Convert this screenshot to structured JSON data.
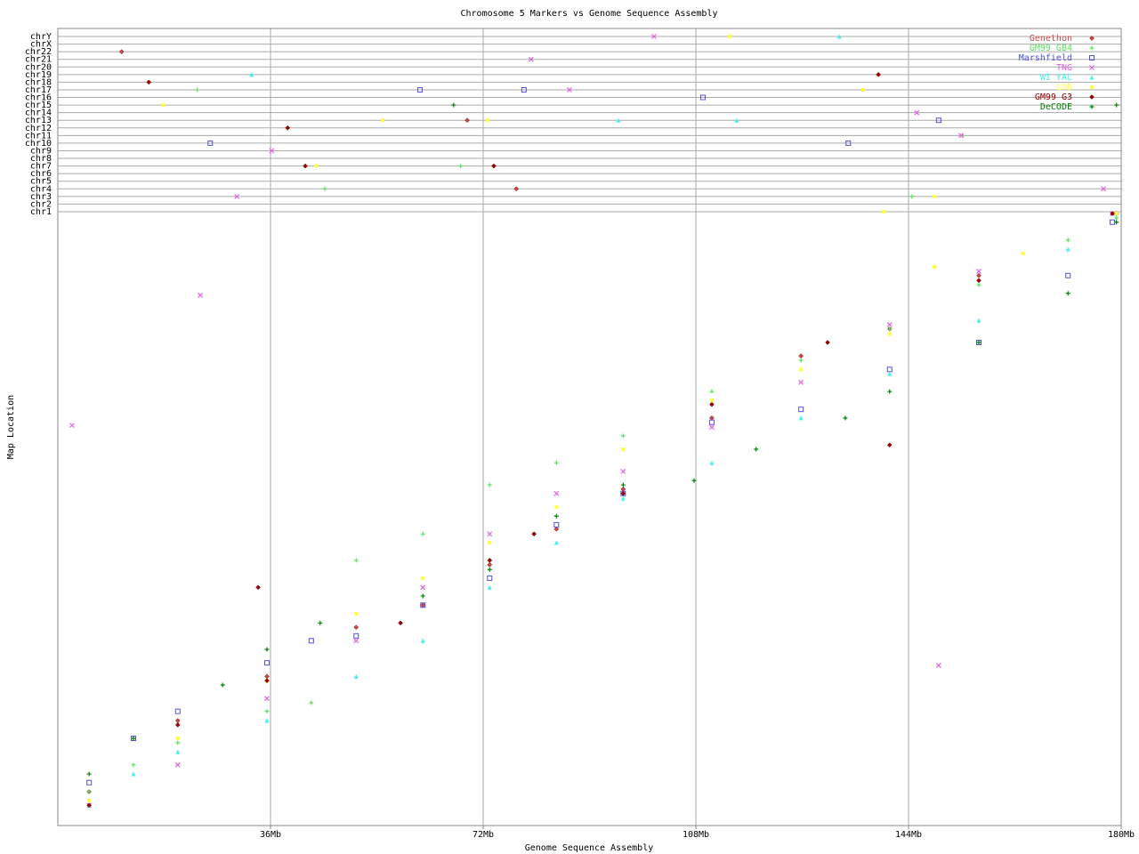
{
  "chart_data": {
    "type": "scatter",
    "title": "Chromosome 5 Markers vs Genome Sequence Assembly",
    "x_label": "Genome Sequence Assembly",
    "y_label": "Map Location",
    "xlim": [
      0,
      180
    ],
    "xticks": [
      {
        "value": 36,
        "label": "36Mb"
      },
      {
        "value": 72,
        "label": "72Mb"
      },
      {
        "value": 108,
        "label": "108Mb"
      },
      {
        "value": 144,
        "label": "144Mb"
      },
      {
        "value": 180,
        "label": "180Mb"
      }
    ],
    "ylim": [
      0,
      100
    ],
    "grid": true,
    "legend": "top-right",
    "chromosomes": [
      "chrY",
      "chrX",
      "chr22",
      "chr21",
      "chr20",
      "chr19",
      "chr18",
      "chr17",
      "chr16",
      "chr15",
      "chr14",
      "chr13",
      "chr12",
      "chr11",
      "chr10",
      "chr9",
      "chr8",
      "chr7",
      "chr6",
      "chr5",
      "chr4",
      "chr3",
      "chr2",
      "chr1"
    ],
    "series": [
      {
        "name": "Genethon",
        "color": "#d04848",
        "marker": "diamond",
        "x": [
          5.3,
          20.3,
          35.4,
          50.5,
          61.8,
          73.1,
          84.4,
          95.7,
          110.7,
          125.8,
          140.8,
          155.9,
          179.2
        ],
        "values": [
          5.5,
          17.1,
          24.3,
          32.3,
          35.9,
          42.5,
          48.3,
          54.8,
          66.4,
          76.5,
          80.9,
          89.6,
          99.7
        ],
        "off_x": [
          10.8,
          69.3,
          77.6
        ],
        "off_chr": [
          "chr22",
          "chr13",
          "chr4"
        ]
      },
      {
        "name": "GM99 GB4",
        "color": "#60e060",
        "marker": "plus",
        "x": [
          5.3,
          12.8,
          20.3,
          35.4,
          42.9,
          50.5,
          61.8,
          73.1,
          84.4,
          95.7,
          110.7,
          125.8,
          140.8,
          155.9,
          171,
          179.2
        ],
        "values": [
          5.5,
          9.9,
          13.5,
          18.6,
          20,
          43.2,
          47.5,
          55.5,
          59.1,
          63.5,
          70.7,
          75.8,
          80.9,
          88.1,
          95.4,
          99
        ],
        "off_x": [
          23.6,
          45.2,
          68.2,
          153.2,
          144.6
        ],
        "off_chr": [
          "chr17",
          "chr4",
          "chr7",
          "chr11",
          "chr3"
        ]
      },
      {
        "name": "Marshfield",
        "color": "#5050e0",
        "marker": "square",
        "x": [
          5.3,
          12.8,
          20.3,
          35.4,
          42.9,
          50.5,
          61.8,
          73.1,
          84.4,
          95.7,
          110.7,
          125.8,
          140.8,
          155.9,
          171,
          178.5
        ],
        "values": [
          7,
          14.2,
          18.6,
          26.5,
          30.1,
          30.9,
          35.9,
          40.3,
          49,
          54.1,
          65.7,
          67.8,
          74.3,
          78.7,
          89.6,
          98.3
        ],
        "off_x": [
          61.3,
          78.9,
          109.2,
          149.1,
          133.8,
          25.8
        ],
        "off_chr": [
          "chr17",
          "chr17",
          "chr16",
          "chr13",
          "chr10",
          "chr10"
        ]
      },
      {
        "name": "TNG",
        "color": "#e060e0",
        "marker": "cross",
        "x": [
          5.3,
          20.3,
          35.4,
          50.5,
          61.8,
          73.1,
          84.4,
          95.7,
          110.7,
          125.8,
          140.8,
          155.9,
          178.5,
          2.4,
          24.1,
          149.1
        ],
        "values": [
          3.3,
          9.9,
          20.7,
          30.1,
          38.8,
          47.5,
          54.1,
          57.7,
          64.9,
          72.2,
          81.6,
          90.3,
          99.7,
          65.2,
          86.4,
          26.1
        ],
        "off_x": [
          100.9,
          80.1,
          145.4,
          152.9,
          86.6,
          36.2,
          30.3,
          177
        ],
        "off_chr": [
          "chrY",
          "chr21",
          "chr14",
          "chr11",
          "chr17",
          "chr9",
          "chr3",
          "chr4"
        ]
      },
      {
        "name": "WI YAC",
        "color": "#40f0f0",
        "marker": "triangle",
        "x": [
          5.3,
          12.8,
          20.3,
          35.4,
          50.5,
          61.8,
          73.1,
          84.4,
          95.7,
          110.7,
          125.8,
          140.8,
          155.9,
          171,
          179.2
        ],
        "values": [
          3.3,
          8.4,
          12,
          17.1,
          24.3,
          30.1,
          38.8,
          46.1,
          53.3,
          59.1,
          66.4,
          73.6,
          82.3,
          93.9,
          99.7
        ],
        "off_x": [
          32.8,
          132.3,
          114.9,
          94.9
        ],
        "off_chr": [
          "chr19",
          "chrY",
          "chr13",
          "chr13"
        ]
      },
      {
        "name": "LDB",
        "color": "#ffff40",
        "marker": "dot",
        "x": [
          5.3,
          20.3,
          35.4,
          50.5,
          61.8,
          73.1,
          84.4,
          95.7,
          110.7,
          125.8,
          140.8,
          148.4,
          163.4,
          179.2
        ],
        "values": [
          4.1,
          14.2,
          23.6,
          34.5,
          40.3,
          46.1,
          51.9,
          61.3,
          69.3,
          74.3,
          80.1,
          91,
          93.2,
          99.7
        ],
        "off_x": [
          113.7,
          17.8,
          136.3,
          55,
          72.8,
          43.7,
          148.4,
          139.8
        ],
        "off_chr": [
          "chrY",
          "chr15",
          "chr17",
          "chr13",
          "chr13",
          "chr7",
          "chr3",
          "chr1"
        ]
      },
      {
        "name": "GM99 G3",
        "color": "#a00000",
        "marker": "diamond",
        "x": [
          5.3,
          20.3,
          33.9,
          35.4,
          58,
          73.1,
          80.6,
          95.7,
          110.7,
          130.3,
          140.8,
          155.9,
          178.5
        ],
        "values": [
          3.3,
          16.4,
          38.8,
          23.6,
          33,
          43.2,
          47.5,
          54.1,
          68.6,
          78.7,
          62,
          88.8,
          99.7
        ],
        "off_x": [
          15.4,
          138.9,
          38.9,
          73.8,
          41.9
        ],
        "off_chr": [
          "chr18",
          "chr19",
          "chr12",
          "chr7",
          "chr7"
        ]
      },
      {
        "name": "DeCODE",
        "color": "#008000",
        "marker": "plus",
        "x": [
          5.3,
          12.8,
          27.9,
          35.4,
          44.4,
          61.8,
          73.1,
          84.4,
          95.7,
          107.7,
          118.2,
          133.3,
          140.8,
          155.9,
          171,
          179.2
        ],
        "values": [
          8.4,
          14.2,
          22.9,
          28.7,
          33,
          37.4,
          41.7,
          50.4,
          55.5,
          56.2,
          61.3,
          66.4,
          70.7,
          78.7,
          86.7,
          98.3
        ],
        "off_x": [
          67,
          179.2
        ],
        "off_chr": [
          "chr15",
          "chr15"
        ]
      }
    ]
  }
}
